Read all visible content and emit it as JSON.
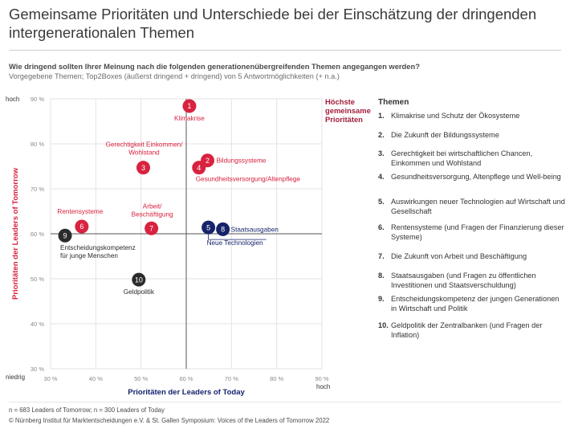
{
  "title": "Gemeinsame Prioritäten und Unterschiede bei der Einschätzung der dringenden intergenerationalen Themen",
  "question": "Wie dringend sollten Ihrer Meinung nach die folgenden generationenübergreifenden Themen angegangen werden?",
  "note": "Vorgegebene Themen; Top2Boxes (äußerst dringend + dringend) von 5 Antwortmöglichkeiten (+ n.a.)",
  "chart_data": {
    "type": "scatter",
    "xlabel": "Prioritäten der Leaders of Today",
    "ylabel": "Prioritäten der Leaders of Tomorrow",
    "xlim": [
      30,
      90
    ],
    "ylim": [
      30,
      90
    ],
    "x_ticks": [
      "30 %",
      "40 %",
      "50 %",
      "60 %",
      "70 %",
      "80 %",
      "90 %"
    ],
    "y_ticks": [
      "30 %",
      "40 %",
      "50 %",
      "60 %",
      "70 %",
      "80 %",
      "90 %"
    ],
    "x_low": "niedrig",
    "x_high": "hoch",
    "y_high": "hoch",
    "reference": {
      "x": 60,
      "y": 60
    },
    "quadrant_label": [
      "Höchste",
      "gemeinsame",
      "Prioritäten"
    ],
    "colors": {
      "shared": "#d8223f",
      "today": "#14236b",
      "neither": "#2b2b2b",
      "highlight": "#a31d3b",
      "ylabel": "#d8223f",
      "xlabel": "#14236b"
    },
    "points": [
      {
        "id": "1",
        "x": 60.7,
        "y": 88.4,
        "group": "shared",
        "label": "Klimakrise"
      },
      {
        "id": "2",
        "x": 64.7,
        "y": 76.3,
        "group": "shared",
        "label": "Bildungssysteme"
      },
      {
        "id": "3",
        "x": 50.5,
        "y": 74.7,
        "group": "shared",
        "label": [
          "Gerechtigkeit Einkommen/",
          "Wohlstand"
        ]
      },
      {
        "id": "4",
        "x": 62.8,
        "y": 74.7,
        "group": "shared",
        "label": "Gesundheitsversorgung/Altenpflege"
      },
      {
        "id": "5",
        "x": 64.9,
        "y": 61.4,
        "group": "today",
        "label": "Neue Technologien"
      },
      {
        "id": "6",
        "x": 36.9,
        "y": 61.6,
        "group": "shared",
        "label": "Rentensysteme"
      },
      {
        "id": "7",
        "x": 52.3,
        "y": 61.2,
        "group": "shared",
        "label": [
          "Arbeit/",
          "Beschäftigung"
        ]
      },
      {
        "id": "8",
        "x": 68.1,
        "y": 61.0,
        "group": "today",
        "label": "Staatsausgaben"
      },
      {
        "id": "9",
        "x": 33.2,
        "y": 59.6,
        "group": "neither",
        "label": [
          "Entscheidungskompetenz",
          "für junge Menschen"
        ]
      },
      {
        "id": "10",
        "x": 49.5,
        "y": 49.8,
        "group": "neither",
        "label": "Geldpolitik"
      }
    ]
  },
  "legend": {
    "title": "Themen",
    "items": [
      {
        "num": "1.",
        "text": "Klimakrise und Schutz der Ökosysteme"
      },
      {
        "num": "2.",
        "text": "Die Zukunft der Bildungssysteme"
      },
      {
        "num": "3.",
        "text": "Gerechtigkeit bei wirtschaftlichen Chancen, Einkommen und Wohlstand"
      },
      {
        "num": "4.",
        "text": "Gesundheitsversorgung, Altenpflege und Well-being"
      },
      {
        "num": "5.",
        "text": "Auswirkungen neuer Technologien auf Wirtschaft und Gesellschaft"
      },
      {
        "num": "6.",
        "text": "Rentensysteme (und Fragen der Finanzierung dieser Systeme)"
      },
      {
        "num": "7.",
        "text": "Die Zukunft von Arbeit und Beschäftigung"
      },
      {
        "num": "8.",
        "text": "Staatsausgaben (und Fragen zu öffentlichen Investitionen und Staatsverschuldung)"
      },
      {
        "num": "9.",
        "text": "Entscheidungskompetenz der jungen Generationen in Wirtschaft und Politik"
      },
      {
        "num": "10.",
        "text": "Geldpolitik der Zentralbanken (und Fragen der Inflation)"
      }
    ]
  },
  "footer": {
    "sample": "n = 683 Leaders of Tomorrow; n = 300 Leaders of Today",
    "source": "© Nürnberg Institut für Marktentscheidungen e.V. & St. Gallen Symposium: Voices of the Leaders of Tomorrow 2022"
  }
}
